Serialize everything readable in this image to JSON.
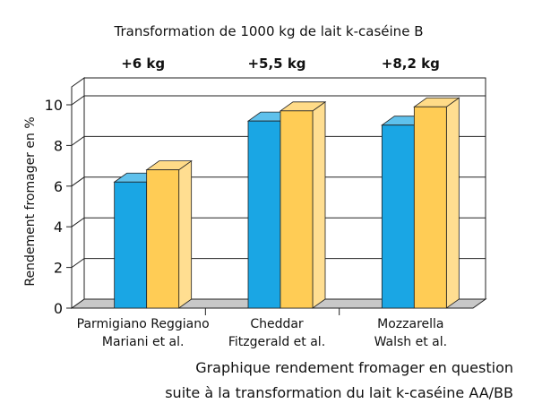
{
  "chart_data": {
    "type": "bar",
    "title": "Transformation de 1000 kg de lait k-caséine B",
    "ylabel": "Rendement fromager en %",
    "ylim": [
      0,
      10
    ],
    "yticks": [
      0,
      2,
      4,
      6,
      8,
      10
    ],
    "categories": [
      {
        "name": "Parmigiano Reggiano",
        "source": "Mariani et al.",
        "gain": "+6 kg"
      },
      {
        "name": "Cheddar",
        "source": "Fitzgerald et al.",
        "gain": "+5,5 kg"
      },
      {
        "name": "Mozzarella",
        "source": "Walsh et al.",
        "gain": "+8,2 kg"
      }
    ],
    "series": [
      {
        "values": [
          6.2,
          9.2,
          9.0
        ],
        "color": "#1aa6e4"
      },
      {
        "values": [
          6.8,
          9.7,
          9.9
        ],
        "color": "#ffcc55"
      }
    ],
    "caption": [
      "Graphique rendement fromager en question",
      "suite à la transformation du lait k-caséine AA/BB"
    ],
    "style": "3d-bar",
    "grid": true
  }
}
